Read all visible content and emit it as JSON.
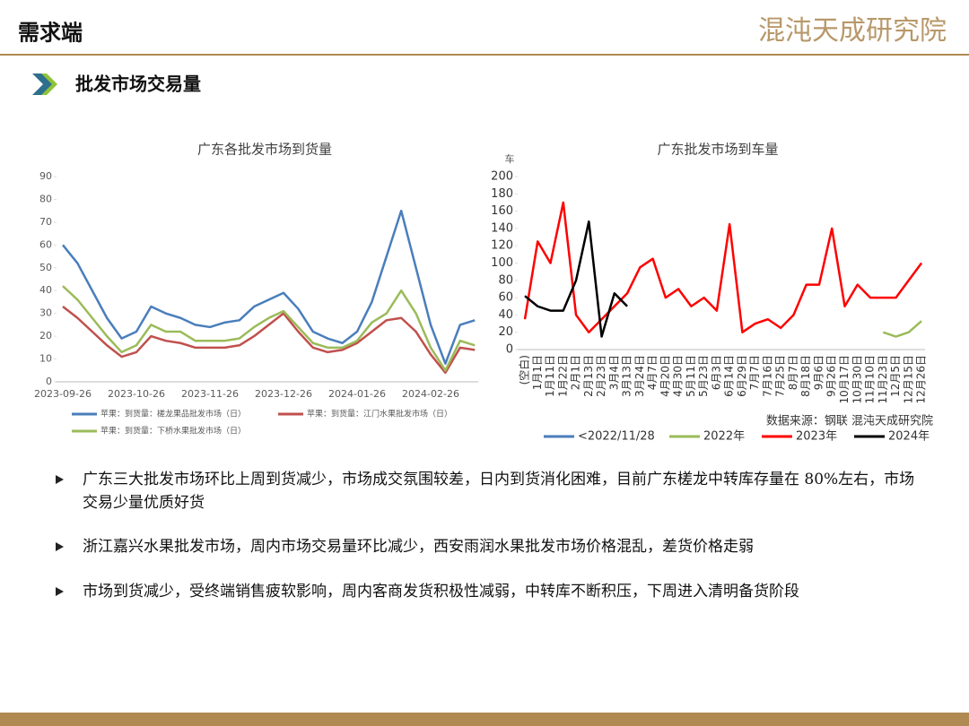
{
  "header": {
    "title": "需求端",
    "logo": "混沌天成研究院"
  },
  "section": {
    "title": "批发市场交易量"
  },
  "chart_data": [
    {
      "type": "line",
      "title": "广东各批发市场到货量",
      "categories": [
        "2023-09-26",
        null,
        null,
        null,
        null,
        "2023-10-26",
        null,
        null,
        null,
        null,
        "2023-11-26",
        null,
        null,
        null,
        null,
        "2023-12-26",
        null,
        null,
        null,
        null,
        "2024-01-26",
        null,
        null,
        null,
        null,
        "2024-02-26",
        null,
        null,
        null
      ],
      "series": [
        {
          "name": "苹果：到货量：槎龙果品批发市场（日）",
          "color": "#4a7ebb",
          "values": [
            60,
            52,
            40,
            28,
            19,
            22,
            33,
            30,
            28,
            25,
            24,
            26,
            27,
            33,
            36,
            39,
            32,
            22,
            19,
            17,
            22,
            35,
            55,
            75,
            50,
            25,
            8,
            25,
            27
          ]
        },
        {
          "name": "苹果：到货量：江门水果批发市场（日）",
          "color": "#c0504d",
          "values": [
            33,
            28,
            22,
            16,
            11,
            13,
            20,
            18,
            17,
            15,
            15,
            15,
            16,
            20,
            25,
            30,
            22,
            15,
            13,
            14,
            17,
            22,
            27,
            28,
            22,
            12,
            4,
            15,
            14
          ]
        },
        {
          "name": "苹果：到货量：下桥水果批发市场（日）",
          "color": "#9bbb59",
          "values": [
            42,
            36,
            28,
            20,
            13,
            16,
            25,
            22,
            22,
            18,
            18,
            18,
            19,
            24,
            28,
            31,
            24,
            17,
            15,
            15,
            18,
            26,
            30,
            40,
            30,
            15,
            5,
            18,
            16
          ]
        }
      ],
      "ylim": [
        0,
        90
      ],
      "yticks": [
        0,
        10,
        20,
        30,
        40,
        50,
        60,
        70,
        80,
        90
      ]
    },
    {
      "type": "line",
      "title": "广东批发市场到车量",
      "y_label": "车",
      "categories": [
        "(空白)",
        "1月1日",
        "1月11日",
        "1月22日",
        "2月1日",
        "2月13日",
        "2月23日",
        "3月4日",
        "3月13日",
        "3月24日",
        "4月7日",
        "4月20日",
        "4月30日",
        "5月11日",
        "5月23日",
        "6月3日",
        "6月14日",
        "6月29日",
        "7月7日",
        "7月16日",
        "7月25日",
        "8月7日",
        "8月18日",
        "9月6日",
        "9月26日",
        "10月17日",
        "10月30日",
        "11月10日",
        "11月23日",
        "12月5日",
        "12月15日",
        "12月26日"
      ],
      "series": [
        {
          "name": "<2022/11/28",
          "color": "#4a7ebb",
          "values": [
            null,
            null,
            null,
            null,
            null,
            null,
            null,
            null,
            null,
            null,
            null,
            null,
            null,
            null,
            null,
            null,
            null,
            null,
            null,
            null,
            null,
            null,
            null,
            null,
            null,
            null,
            null,
            null,
            null,
            null,
            null,
            null
          ]
        },
        {
          "name": "2022年",
          "color": "#9bbb59",
          "values": [
            null,
            null,
            null,
            null,
            null,
            null,
            null,
            null,
            null,
            null,
            null,
            null,
            null,
            null,
            null,
            null,
            null,
            null,
            null,
            null,
            null,
            null,
            null,
            null,
            null,
            null,
            null,
            null,
            20,
            15,
            20,
            33
          ]
        },
        {
          "name": "2023年",
          "color": "#ff0000",
          "values": [
            35,
            125,
            100,
            170,
            40,
            20,
            35,
            50,
            65,
            95,
            105,
            60,
            70,
            50,
            60,
            45,
            145,
            20,
            30,
            35,
            25,
            40,
            75,
            75,
            140,
            50,
            75,
            60,
            60,
            60,
            80,
            100
          ]
        },
        {
          "name": "2024年",
          "color": "#000000",
          "values": [
            62,
            50,
            45,
            45,
            80,
            148,
            15,
            65,
            50,
            null,
            null,
            null,
            null,
            null,
            null,
            null,
            null,
            null,
            null,
            null,
            null,
            null,
            null,
            null,
            null,
            null,
            null,
            null,
            null,
            null,
            null,
            null
          ]
        }
      ],
      "ylim": [
        0,
        200
      ],
      "yticks": [
        0,
        20,
        40,
        60,
        80,
        100,
        120,
        140,
        160,
        180,
        200
      ],
      "source": "数据来源：钢联  混沌天成研究院"
    }
  ],
  "bullets": [
    "广东三大批发市场环比上周到货减少，市场成交氛围较差，日内到货消化困难，目前广东槎龙中转库存量在 80%左右，市场交易少量优质好货",
    "浙江嘉兴水果批发市场，周内市场交易量环比减少，西安雨润水果批发市场价格混乱，差货价格走弱",
    "市场到货减少，受终端销售疲软影响，周内客商发货积极性减弱，中转库不断积压，下周进入清明备货阶段"
  ]
}
